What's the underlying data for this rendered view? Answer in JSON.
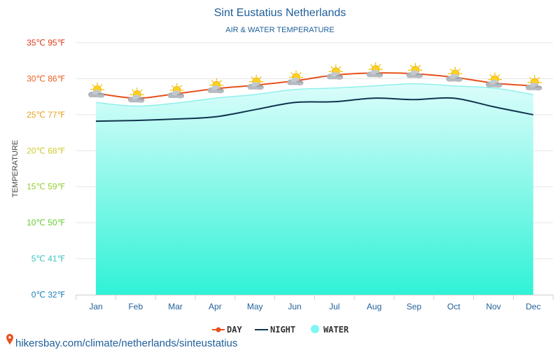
{
  "chart_data": {
    "type": "line",
    "title": "Sint Eustatius Netherlands",
    "subtitle": "AIR & WATER TEMPERATURE",
    "ylabel": "TEMPERATURE",
    "categories": [
      "Jan",
      "Feb",
      "Mar",
      "Apr",
      "May",
      "Jun",
      "Jul",
      "Aug",
      "Sep",
      "Oct",
      "Nov",
      "Dec"
    ],
    "ylim": [
      0,
      35
    ],
    "y_ticks": [
      {
        "value": 0,
        "label": "0℃ 32℉",
        "color": "#1f7fb8"
      },
      {
        "value": 5,
        "label": "5℃ 41℉",
        "color": "#3cc4c4"
      },
      {
        "value": 10,
        "label": "10℃ 50℉",
        "color": "#66cc33"
      },
      {
        "value": 15,
        "label": "15℃ 59℉",
        "color": "#99cc33"
      },
      {
        "value": 20,
        "label": "20℃ 68℉",
        "color": "#cccc33"
      },
      {
        "value": 25,
        "label": "25℃ 77℉",
        "color": "#e8a020"
      },
      {
        "value": 30,
        "label": "30℃ 86℉",
        "color": "#e86020"
      },
      {
        "value": 35,
        "label": "35℃ 95℉",
        "color": "#e03c1c"
      }
    ],
    "series": [
      {
        "name": "DAY",
        "color": "#e8501c",
        "values": [
          28.0,
          27.3,
          27.9,
          28.6,
          29.1,
          29.7,
          30.5,
          30.8,
          30.7,
          30.2,
          29.4,
          29.0
        ]
      },
      {
        "name": "NIGHT",
        "color": "#10344e",
        "values": [
          24.1,
          24.2,
          24.4,
          24.7,
          25.7,
          26.7,
          26.8,
          27.3,
          27.1,
          27.3,
          26.1,
          25.0
        ]
      },
      {
        "name": "WATER",
        "color": "#7ff7f2",
        "values": [
          26.7,
          26.2,
          26.6,
          27.3,
          27.8,
          28.5,
          28.7,
          29.0,
          29.3,
          29.0,
          28.7,
          27.8
        ]
      }
    ],
    "weather_icon": "partly-cloudy-icon"
  },
  "legend": {
    "day_label": "DAY",
    "night_label": "NIGHT",
    "water_label": "WATER"
  },
  "footer": {
    "url": "hikersbay.com/climate/netherlands/sinteustatius",
    "pin_icon": "location-pin-icon",
    "pin_color": "#e8501c"
  }
}
